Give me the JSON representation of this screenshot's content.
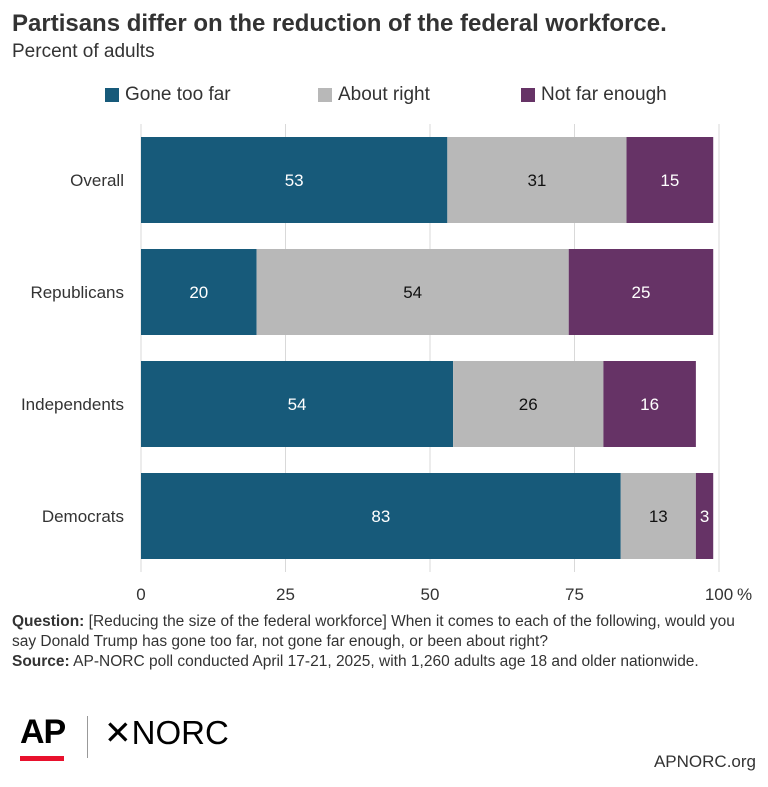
{
  "header": {
    "title": "Partisans differ on the reduction of the federal workforce.",
    "subtitle": "Percent of adults"
  },
  "chart_data": {
    "type": "bar",
    "orientation": "horizontal",
    "stacked": true,
    "categories": [
      "Overall",
      "Republicans",
      "Independents",
      "Democrats"
    ],
    "series": [
      {
        "name": "Gone too far",
        "color": "#175a7a",
        "values": [
          53,
          20,
          54,
          83
        ]
      },
      {
        "name": "About right",
        "color": "#b8b8b8",
        "values": [
          31,
          54,
          26,
          13
        ]
      },
      {
        "name": "Not far enough",
        "color": "#663366",
        "values": [
          15,
          25,
          16,
          3
        ]
      }
    ],
    "xlim": [
      0,
      100
    ],
    "xticks": [
      "0",
      "25",
      "50",
      "75",
      "100"
    ],
    "x_unit": "%",
    "grid": true,
    "legend_position": "top"
  },
  "notes": {
    "question_label": "Question:",
    "question_text": "[Reducing the size of the federal workforce] When it comes to each of the following, would you say Donald Trump has gone too far, not gone far enough, or been about right?",
    "source_label": "Source:",
    "source_text": "AP-NORC poll conducted April 17-21, 2025, with 1,260 adults age 18 and older nationwide."
  },
  "footer": {
    "logo_ap": "AP",
    "logo_norc": "NORC",
    "logo_norc_mark": "✕",
    "site": "APNORC.org"
  }
}
